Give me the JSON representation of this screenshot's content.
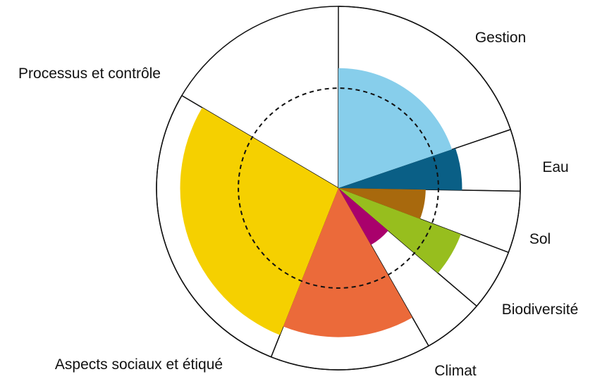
{
  "chart_data": {
    "type": "polar-area",
    "unit": "relative score",
    "max_value": 100,
    "reference_level": 55,
    "categories": [
      {
        "label": "Gestion",
        "value": 66,
        "color": "#87CEEB",
        "share": 0.1978
      },
      {
        "label": "Eau",
        "value": 68,
        "color": "#0A5F86",
        "share": 0.0549
      },
      {
        "label": "Sol",
        "value": 48,
        "color": "#A8690D",
        "share": 0.0549
      },
      {
        "label": "Biodiversité",
        "value": 72,
        "color": "#97BE1E",
        "share": 0.0549
      },
      {
        "label": "Climat",
        "value": 36,
        "color": "#A9016C",
        "share": 0.0549
      },
      {
        "label": "Aspects sociaux et étiqué",
        "value": 82,
        "color": "#EB6A3A",
        "share": 0.1429
      },
      {
        "label": "Processus et contrôle",
        "value": 87,
        "color": "#F5D000",
        "share": 0.2747
      }
    ]
  }
}
